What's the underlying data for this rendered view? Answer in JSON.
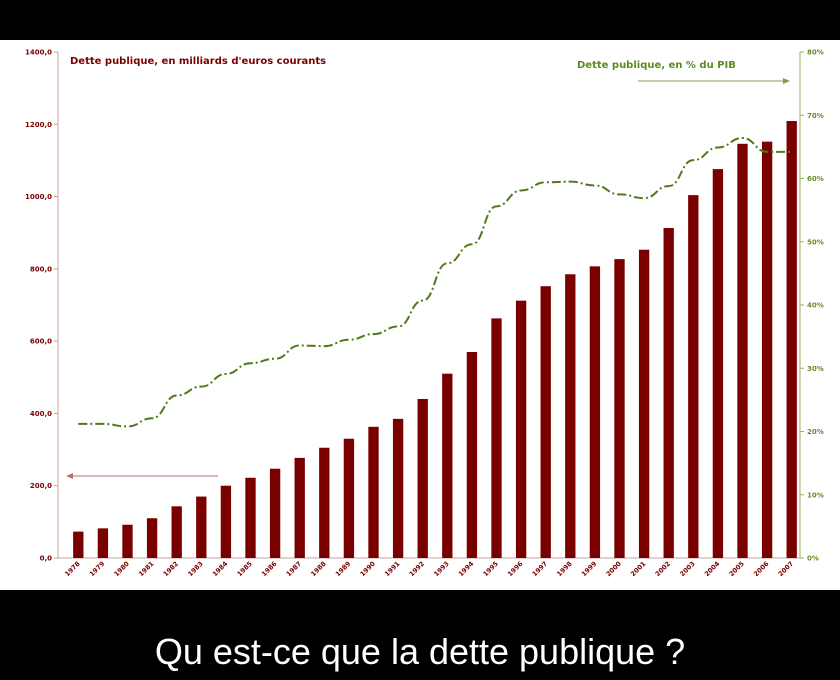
{
  "caption": "Qu est-ce que la dette publique ?",
  "colors": {
    "bar": "#7a0000",
    "line": "#4f7a1a",
    "background": "#000000",
    "plot_background": "#ffffff"
  },
  "chart_data": {
    "type": "bar",
    "title_left": "Dette publique, en milliards d'euros courants",
    "title_right": "Dette publique, en % du PIB",
    "categories": [
      "1978",
      "1979",
      "1980",
      "1981",
      "1982",
      "1983",
      "1984",
      "1985",
      "1986",
      "1987",
      "1988",
      "1989",
      "1990",
      "1991",
      "1992",
      "1993",
      "1994",
      "1995",
      "1996",
      "1997",
      "1998",
      "1999",
      "2000",
      "2001",
      "2002",
      "2003",
      "2004",
      "2005",
      "2006",
      "2007"
    ],
    "series": [
      {
        "name": "Dette publique, en milliards d'euros courants",
        "axis": "left",
        "type": "bar",
        "values": [
          73,
          82,
          92,
          110,
          143,
          170,
          200,
          222,
          247,
          277,
          305,
          330,
          363,
          385,
          440,
          510,
          570,
          663,
          712,
          752,
          785,
          807,
          827,
          853,
          913,
          1004,
          1076,
          1146,
          1152,
          1209
        ]
      },
      {
        "name": "Dette publique, en % du PIB",
        "axis": "right",
        "type": "line",
        "style": "dash-dot",
        "values": [
          21.2,
          21.2,
          20.8,
          22.1,
          25.7,
          27.1,
          29.1,
          30.8,
          31.5,
          33.6,
          33.5,
          34.5,
          35.4,
          36.6,
          40.7,
          46.6,
          49.6,
          55.6,
          58.1,
          59.4,
          59.5,
          58.9,
          57.5,
          56.9,
          58.8,
          62.9,
          64.9,
          66.4,
          64.2,
          64.2
        ]
      }
    ],
    "y_left": {
      "min": 0,
      "max": 1400,
      "ticks": [
        "0,0",
        "200,0",
        "400,0",
        "600,0",
        "800,0",
        "1000,0",
        "1200,0",
        "1400,0"
      ]
    },
    "y_right": {
      "min": 0,
      "max": 80,
      "ticks": [
        "0%",
        "10%",
        "20%",
        "30%",
        "40%",
        "50%",
        "60%",
        "70%",
        "80%"
      ]
    },
    "grid": false,
    "legend": "titles-top"
  }
}
